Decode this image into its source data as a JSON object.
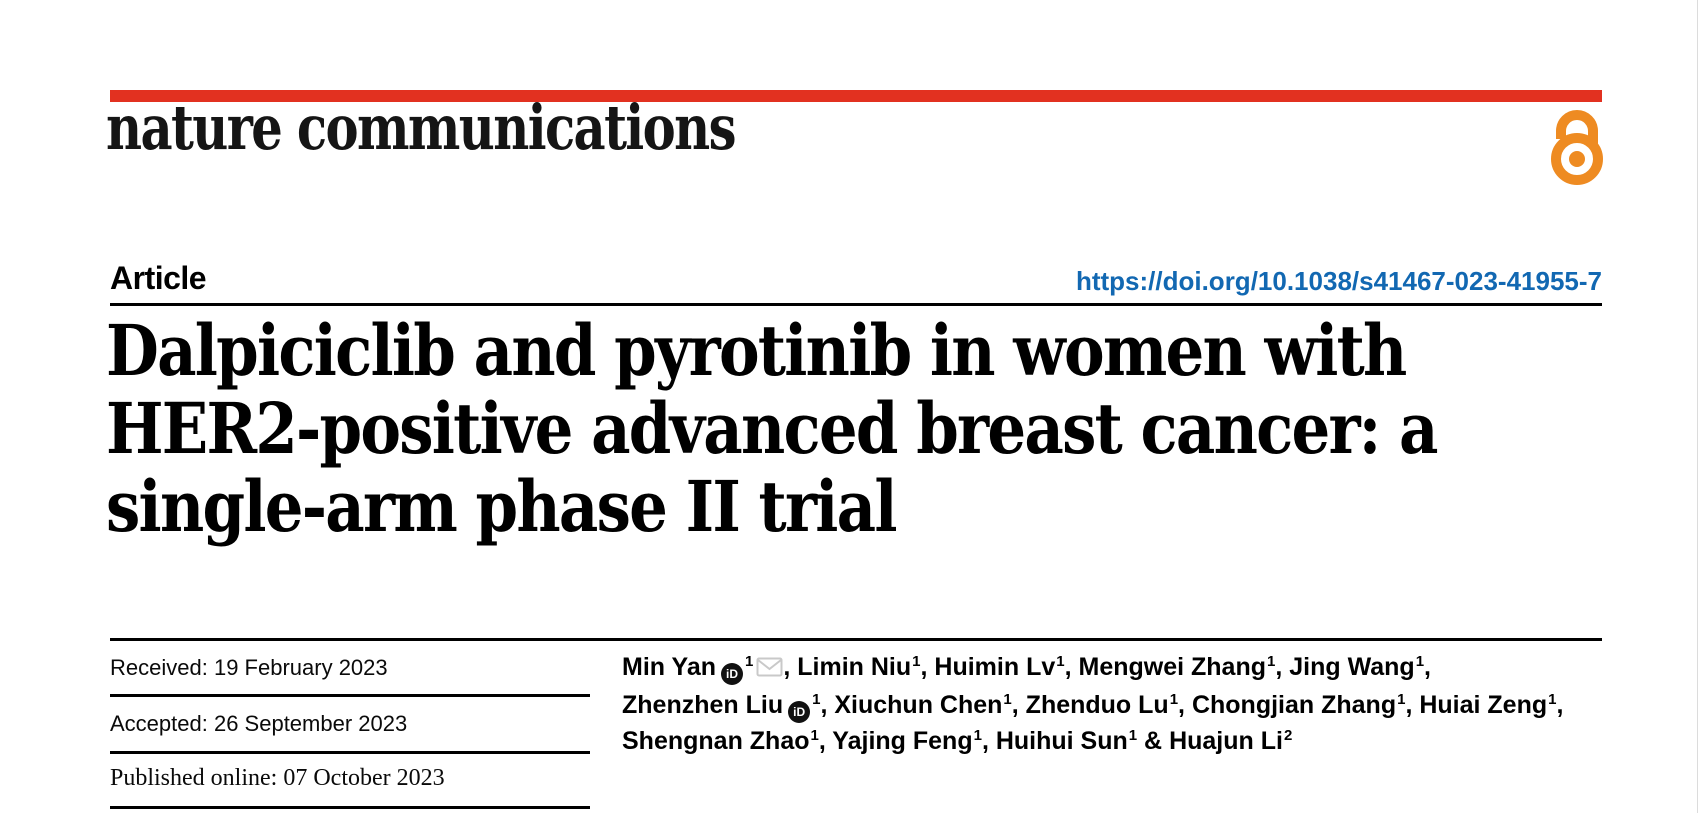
{
  "masthead": {
    "journal_name": "nature communications",
    "brand_bar_color": "#e23120",
    "open_access_icon": "open-padlock",
    "open_access_color": "#ee8b22"
  },
  "article_header": {
    "type_label": "Article",
    "doi_link": "https://doi.org/10.1038/s41467-023-41955-7",
    "doi_color": "#1268b2",
    "title_line1": "Dalpiciclib and pyrotinib in women with",
    "title_line2": "HER2-positive advanced breast cancer: a",
    "title_line3": "single-arm phase II trial"
  },
  "history": {
    "received": {
      "label": "Received:",
      "value": "19 February 2023"
    },
    "accepted": {
      "label": "Accepted:",
      "value": "26 September 2023"
    },
    "published": {
      "label": "Published online:",
      "value": "07 October 2023"
    }
  },
  "authors": {
    "orcid_icon": "iD",
    "email_icon": "envelope",
    "email_icon_color": "#c9c9c9",
    "lines": [
      [
        {
          "name": "Min Yan",
          "orcid": true,
          "sup": "1",
          "email": true,
          "sep": ", "
        },
        {
          "name": "Limin Niu",
          "sup": "1",
          "sep": ", "
        },
        {
          "name": "Huimin Lv",
          "sup": "1",
          "sep": ", "
        },
        {
          "name": "Mengwei Zhang",
          "sup": "1",
          "sep": ", "
        },
        {
          "name": "Jing Wang",
          "sup": "1",
          "sep": ","
        }
      ],
      [
        {
          "name": "Zhenzhen Liu",
          "orcid": true,
          "sup": "1",
          "sep": ", "
        },
        {
          "name": "Xiuchun Chen",
          "sup": "1",
          "sep": ", "
        },
        {
          "name": "Zhenduo Lu",
          "sup": "1",
          "sep": ", "
        },
        {
          "name": "Chongjian Zhang",
          "sup": "1",
          "sep": ", "
        },
        {
          "name": "Huiai Zeng",
          "sup": "1",
          "sep": ","
        }
      ],
      [
        {
          "name": "Shengnan Zhao",
          "sup": "1",
          "sep": ", "
        },
        {
          "name": "Yajing Feng",
          "sup": "1",
          "sep": ", "
        },
        {
          "name": "Huihui Sun",
          "sup": "1",
          "sep": " & "
        },
        {
          "name": "Huajun Li",
          "sup": "2",
          "sep": ""
        }
      ]
    ]
  }
}
